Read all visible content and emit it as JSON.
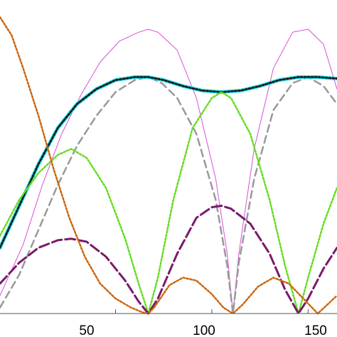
{
  "chart_data": {
    "type": "line",
    "title": "",
    "xlabel": "",
    "ylabel": "",
    "xlim": [
      -10,
      165
    ],
    "ylim": [
      0,
      1.0
    ],
    "grid": false,
    "legend": "none",
    "x_ticks": [
      {
        "value": 50,
        "label": "50"
      },
      {
        "value": 100,
        "label": "100"
      },
      {
        "value": 150,
        "label": "150"
      }
    ],
    "series": [
      {
        "color": "#d94fd9",
        "style": "thin-solid",
        "points": [
          [
            -10,
            0.06
          ],
          [
            2,
            0.23
          ],
          [
            12,
            0.43
          ],
          [
            22,
            0.6
          ],
          [
            32,
            0.73
          ],
          [
            42,
            0.84
          ],
          [
            52,
            0.91
          ],
          [
            62,
            0.94
          ],
          [
            67,
            0.95
          ],
          [
            72,
            0.94
          ],
          [
            82,
            0.88
          ],
          [
            92,
            0.72
          ],
          [
            102,
            0.45
          ],
          [
            108,
            0.2
          ],
          [
            111,
            0
          ],
          [
            114,
            0.2
          ],
          [
            122,
            0.55
          ],
          [
            132,
            0.82
          ],
          [
            142,
            0.94
          ],
          [
            150,
            0.95
          ],
          [
            158,
            0.9
          ],
          [
            165,
            0.75
          ]
        ]
      },
      {
        "color": "#999999",
        "style": "dashed",
        "points": [
          [
            -10,
            0.02
          ],
          [
            0,
            0.13
          ],
          [
            10,
            0.28
          ],
          [
            20,
            0.43
          ],
          [
            30,
            0.56
          ],
          [
            40,
            0.66
          ],
          [
            50,
            0.74
          ],
          [
            60,
            0.78
          ],
          [
            67,
            0.79
          ],
          [
            74,
            0.77
          ],
          [
            82,
            0.72
          ],
          [
            92,
            0.6
          ],
          [
            102,
            0.38
          ],
          [
            108,
            0.16
          ],
          [
            111,
            0
          ],
          [
            114,
            0.17
          ],
          [
            122,
            0.45
          ],
          [
            132,
            0.68
          ],
          [
            142,
            0.77
          ],
          [
            150,
            0.79
          ],
          [
            158,
            0.76
          ],
          [
            165,
            0.7
          ]
        ]
      },
      {
        "color": "#1fd4dc",
        "style": "thick-solid",
        "points": [
          [
            -10,
            0.22
          ],
          [
            0,
            0.36
          ],
          [
            10,
            0.5
          ],
          [
            20,
            0.62
          ],
          [
            30,
            0.7
          ],
          [
            40,
            0.75
          ],
          [
            50,
            0.78
          ],
          [
            60,
            0.79
          ],
          [
            67,
            0.79
          ],
          [
            75,
            0.78
          ],
          [
            85,
            0.76
          ],
          [
            95,
            0.745
          ],
          [
            105,
            0.74
          ],
          [
            115,
            0.745
          ],
          [
            125,
            0.76
          ],
          [
            135,
            0.78
          ],
          [
            145,
            0.79
          ],
          [
            155,
            0.79
          ],
          [
            165,
            0.785
          ]
        ]
      },
      {
        "color": "#111111",
        "style": "dotted",
        "points": [
          [
            -10,
            0.22
          ],
          [
            0,
            0.36
          ],
          [
            10,
            0.5
          ],
          [
            20,
            0.62
          ],
          [
            30,
            0.7
          ],
          [
            40,
            0.75
          ],
          [
            50,
            0.78
          ],
          [
            60,
            0.79
          ],
          [
            67,
            0.79
          ],
          [
            75,
            0.78
          ],
          [
            85,
            0.76
          ],
          [
            95,
            0.745
          ],
          [
            105,
            0.74
          ],
          [
            115,
            0.745
          ],
          [
            125,
            0.76
          ],
          [
            135,
            0.78
          ],
          [
            145,
            0.79
          ],
          [
            155,
            0.79
          ],
          [
            165,
            0.785
          ]
        ]
      },
      {
        "color": "#66dd22",
        "style": "dotted",
        "points": [
          [
            -10,
            0.26
          ],
          [
            0,
            0.38
          ],
          [
            10,
            0.47
          ],
          [
            20,
            0.53
          ],
          [
            27,
            0.55
          ],
          [
            35,
            0.52
          ],
          [
            45,
            0.42
          ],
          [
            55,
            0.25
          ],
          [
            62,
            0.1
          ],
          [
            67,
            0
          ],
          [
            72,
            0.12
          ],
          [
            80,
            0.38
          ],
          [
            90,
            0.62
          ],
          [
            100,
            0.72
          ],
          [
            105,
            0.74
          ],
          [
            110,
            0.72
          ],
          [
            120,
            0.6
          ],
          [
            130,
            0.38
          ],
          [
            138,
            0.16
          ],
          [
            145,
            0
          ],
          [
            150,
            0.12
          ],
          [
            158,
            0.3
          ],
          [
            165,
            0.42
          ]
        ]
      },
      {
        "color": "#7a1a6a",
        "style": "long-dashed",
        "points": [
          [
            -10,
            0.1
          ],
          [
            0,
            0.17
          ],
          [
            10,
            0.22
          ],
          [
            20,
            0.245
          ],
          [
            27,
            0.25
          ],
          [
            35,
            0.24
          ],
          [
            45,
            0.19
          ],
          [
            55,
            0.11
          ],
          [
            62,
            0.04
          ],
          [
            67,
            0
          ],
          [
            72,
            0.05
          ],
          [
            82,
            0.2
          ],
          [
            92,
            0.32
          ],
          [
            100,
            0.355
          ],
          [
            105,
            0.36
          ],
          [
            110,
            0.35
          ],
          [
            120,
            0.3
          ],
          [
            130,
            0.2
          ],
          [
            138,
            0.08
          ],
          [
            145,
            0
          ],
          [
            150,
            0.05
          ],
          [
            158,
            0.15
          ],
          [
            165,
            0.22
          ]
        ]
      },
      {
        "color": "#cc6611",
        "style": "dotted",
        "points": [
          [
            -10,
            0.99
          ],
          [
            -4,
            0.93
          ],
          [
            2,
            0.82
          ],
          [
            10,
            0.66
          ],
          [
            18,
            0.48
          ],
          [
            26,
            0.32
          ],
          [
            34,
            0.19
          ],
          [
            42,
            0.1
          ],
          [
            50,
            0.05
          ],
          [
            58,
            0.02
          ],
          [
            64,
            0.004
          ],
          [
            67,
            0
          ],
          [
            70,
            0.02
          ],
          [
            78,
            0.095
          ],
          [
            85,
            0.12
          ],
          [
            92,
            0.11
          ],
          [
            100,
            0.065
          ],
          [
            106,
            0.02
          ],
          [
            111,
            0
          ],
          [
            116,
            0.03
          ],
          [
            124,
            0.09
          ],
          [
            132,
            0.12
          ],
          [
            140,
            0.1
          ],
          [
            146,
            0.06
          ],
          [
            152,
            0.02
          ],
          [
            155,
            0
          ],
          [
            160,
            0.03
          ],
          [
            165,
            0.06
          ]
        ]
      }
    ]
  }
}
